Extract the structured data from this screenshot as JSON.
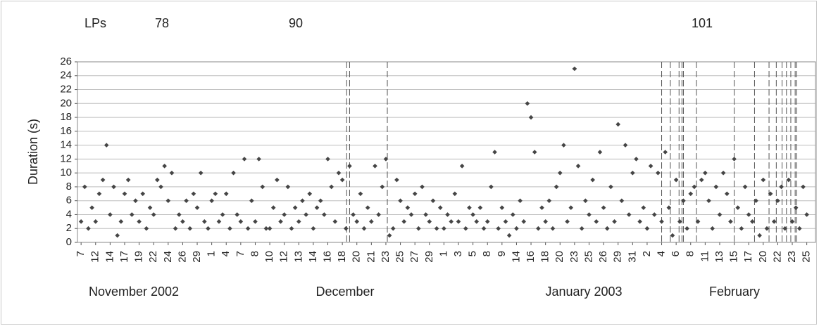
{
  "chart_data": {
    "type": "scatter",
    "y_label": "Duration (s)",
    "lp_header": "LPs",
    "lp_counts": [
      78,
      90,
      101
    ],
    "month_labels": [
      "November 2002",
      "December",
      "January 2003",
      "February"
    ],
    "ylim": [
      0,
      26
    ],
    "yticks": [
      0,
      2,
      4,
      6,
      8,
      10,
      12,
      14,
      16,
      18,
      20,
      22,
      24,
      26
    ],
    "grid": true,
    "xlim": [
      -0.25,
      50.6
    ],
    "xticks": [
      {
        "value": 0,
        "label": "7"
      },
      {
        "value": 1,
        "label": "12"
      },
      {
        "value": 2,
        "label": "14"
      },
      {
        "value": 3,
        "label": "17"
      },
      {
        "value": 4,
        "label": "19"
      },
      {
        "value": 5,
        "label": "22"
      },
      {
        "value": 6,
        "label": "24"
      },
      {
        "value": 7,
        "label": "26"
      },
      {
        "value": 8,
        "label": "29"
      },
      {
        "value": 9,
        "label": "1"
      },
      {
        "value": 10,
        "label": "4"
      },
      {
        "value": 11,
        "label": "7"
      },
      {
        "value": 12,
        "label": "8"
      },
      {
        "value": 13,
        "label": "10"
      },
      {
        "value": 14,
        "label": "12"
      },
      {
        "value": 15,
        "label": "13"
      },
      {
        "value": 16,
        "label": "14"
      },
      {
        "value": 17,
        "label": "16"
      },
      {
        "value": 18,
        "label": "18"
      },
      {
        "value": 19,
        "label": "20"
      },
      {
        "value": 20,
        "label": "21"
      },
      {
        "value": 21,
        "label": "23"
      },
      {
        "value": 22,
        "label": "25"
      },
      {
        "value": 23,
        "label": "27"
      },
      {
        "value": 24,
        "label": "29"
      },
      {
        "value": 25,
        "label": "1"
      },
      {
        "value": 26,
        "label": "3"
      },
      {
        "value": 27,
        "label": "5"
      },
      {
        "value": 28,
        "label": "8"
      },
      {
        "value": 29,
        "label": "9"
      },
      {
        "value": 30,
        "label": "14"
      },
      {
        "value": 31,
        "label": "16"
      },
      {
        "value": 32,
        "label": "18"
      },
      {
        "value": 33,
        "label": "20"
      },
      {
        "value": 34,
        "label": "23"
      },
      {
        "value": 35,
        "label": "25"
      },
      {
        "value": 36,
        "label": "26"
      },
      {
        "value": 37,
        "label": "29"
      },
      {
        "value": 38,
        "label": "31"
      },
      {
        "value": 39,
        "label": "2"
      },
      {
        "value": 40,
        "label": "4"
      },
      {
        "value": 41,
        "label": "6"
      },
      {
        "value": 42,
        "label": "8"
      },
      {
        "value": 43,
        "label": "11"
      },
      {
        "value": 44,
        "label": "13"
      },
      {
        "value": 45,
        "label": "15"
      },
      {
        "value": 46,
        "label": "17"
      },
      {
        "value": 47,
        "label": "20"
      },
      {
        "value": 48,
        "label": "22"
      },
      {
        "value": 49,
        "label": "23"
      },
      {
        "value": 50,
        "label": "25"
      }
    ],
    "event_lines": [
      18.3,
      18.5,
      21.1,
      40.0,
      40.6,
      41.2,
      41.4,
      41.5,
      42.4,
      45.0,
      46.4,
      47.4,
      47.9,
      48.3,
      48.6,
      48.9,
      49.2,
      49.3
    ],
    "series": [
      {
        "color": "#454545",
        "x": [
          0,
          0.25,
          0.5,
          0.75,
          1,
          1.25,
          1.5,
          1.75,
          2,
          2.25,
          2.5,
          2.75,
          3,
          3.25,
          3.5,
          3.75,
          4,
          4.25,
          4.5,
          4.75,
          5,
          5.25,
          5.5,
          5.75,
          6,
          6.25,
          6.5,
          6.75,
          7,
          7.25,
          7.5,
          7.75,
          8,
          8.25,
          8.5,
          8.75,
          9,
          9.25,
          9.5,
          9.75,
          10,
          10.25,
          10.5,
          10.75,
          11,
          11.25,
          11.5,
          11.75,
          12,
          12.25,
          12.5,
          12.75,
          13,
          13.25,
          13.5,
          13.75,
          14,
          14.25,
          14.5,
          14.75,
          15,
          15.25,
          15.5,
          15.75,
          16,
          16.25,
          16.5,
          16.75,
          17,
          17.25,
          17.5,
          17.75,
          18,
          18.25,
          18.5,
          18.75,
          19,
          19.25,
          19.5,
          19.75,
          20,
          20.25,
          20.5,
          20.75,
          21,
          21.25,
          21.5,
          21.75,
          22,
          22.25,
          22.5,
          22.75,
          23,
          23.25,
          23.5,
          23.75,
          24,
          24.25,
          24.5,
          24.75,
          25,
          25.25,
          25.5,
          25.75,
          26,
          26.25,
          26.5,
          26.75,
          27,
          27.25,
          27.5,
          27.75,
          28,
          28.25,
          28.5,
          28.75,
          29,
          29.25,
          29.5,
          29.75,
          30,
          30.25,
          30.5,
          30.75,
          31,
          31.25,
          31.5,
          31.75,
          32,
          32.25,
          32.5,
          32.75,
          33,
          33.25,
          33.5,
          33.75,
          34,
          34.25,
          34.5,
          34.75,
          35,
          35.25,
          35.5,
          35.75,
          36,
          36.25,
          36.5,
          36.75,
          37,
          37.25,
          37.5,
          37.75,
          38,
          38.25,
          38.5,
          38.75,
          39,
          39.25,
          39.5,
          39.75,
          40,
          40.25,
          40.5,
          40.75,
          41,
          41.25,
          41.5,
          41.75,
          42,
          42.25,
          42.5,
          42.75,
          43,
          43.25,
          43.5,
          43.75,
          44,
          44.25,
          44.5,
          44.75,
          45,
          45.25,
          45.5,
          45.75,
          46,
          46.25,
          46.5,
          46.75,
          47,
          47.25,
          47.5,
          47.75,
          48,
          48.25,
          48.5,
          48.75,
          49,
          49.25,
          49.5,
          49.75,
          50
        ],
        "y": [
          3,
          8,
          2,
          5,
          3,
          7,
          9,
          14,
          4,
          8,
          1,
          3,
          7,
          9,
          4,
          6,
          3,
          7,
          2,
          5,
          4,
          9,
          8,
          11,
          6,
          10,
          2,
          4,
          3,
          6,
          2,
          7,
          5,
          10,
          3,
          2,
          6,
          7,
          3,
          4,
          7,
          2,
          10,
          4,
          3,
          12,
          2,
          6,
          3,
          12,
          8,
          2,
          2,
          5,
          9,
          3,
          4,
          8,
          2,
          5,
          3,
          6,
          4,
          7,
          2,
          5,
          6,
          4,
          12,
          8,
          3,
          10,
          9,
          2,
          11,
          4,
          3,
          7,
          2,
          5,
          3,
          11,
          4,
          8,
          12,
          1,
          2,
          9,
          6,
          3,
          5,
          4,
          7,
          2,
          8,
          4,
          3,
          6,
          2,
          5,
          2,
          4,
          3,
          7,
          3,
          11,
          2,
          5,
          4,
          3,
          5,
          2,
          3,
          8,
          13,
          2,
          5,
          3,
          1,
          4,
          2,
          6,
          3,
          20,
          18,
          13,
          2,
          5,
          3,
          6,
          2,
          8,
          10,
          14,
          3,
          5,
          25,
          11,
          2,
          6,
          4,
          9,
          3,
          13,
          5,
          2,
          8,
          3,
          17,
          6,
          14,
          4,
          10,
          12,
          3,
          5,
          2,
          11,
          4,
          10,
          3,
          13,
          5,
          1,
          9,
          3,
          6,
          2,
          7,
          8,
          3,
          9,
          10,
          6,
          2,
          8,
          4,
          10,
          7,
          3,
          12,
          5,
          2,
          8,
          4,
          3,
          6,
          1,
          9,
          2,
          7,
          3,
          6,
          8,
          2,
          9,
          3,
          5,
          2,
          8,
          4
        ]
      }
    ]
  }
}
